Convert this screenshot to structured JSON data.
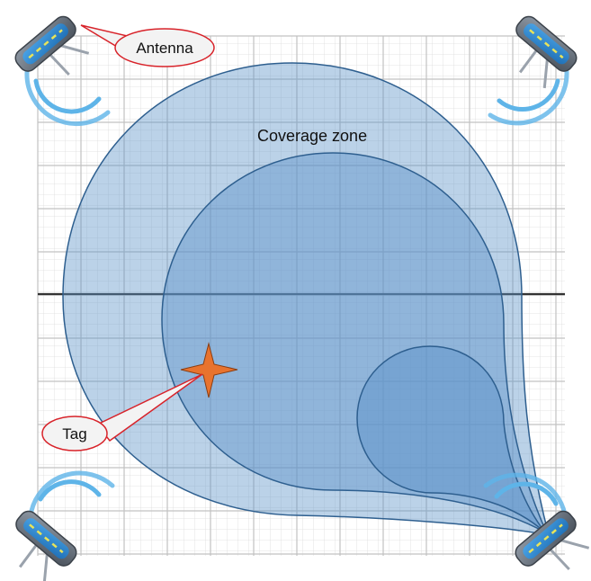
{
  "labels": {
    "antenna": "Antenna",
    "coverage_zone": "Coverage zone",
    "tag": "Tag"
  },
  "colors": {
    "grid_line": "#cfcfcf",
    "grid_major": "#b5b5b5",
    "axis": "#333333",
    "zone_fill": "#5d93c9",
    "zone_stroke": "#2e5f8f",
    "tag_fill": "#e8732e",
    "callout_fill": "#f3f3f3",
    "callout_stroke": "#d8232a",
    "signal_wave": "#5eb4e8",
    "antenna_body": "#5b6470"
  },
  "icons": [
    "antenna-icon",
    "tag-star-icon",
    "signal-wave-icon"
  ]
}
